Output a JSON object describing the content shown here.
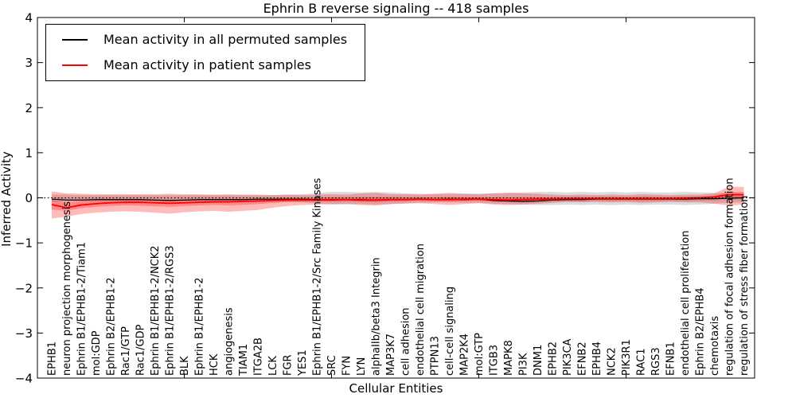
{
  "chart_data": {
    "type": "line",
    "title": "Ephrin B reverse signaling -- 418 samples",
    "xlabel": "Cellular Entities",
    "ylabel": "Inferred Activity",
    "ylim": [
      -4,
      4
    ],
    "yticks": [
      4,
      3,
      2,
      1,
      0,
      -1,
      -2,
      -3,
      -4
    ],
    "ytick_labels": [
      "4",
      "3",
      "2",
      "1",
      "0",
      "−1",
      "−2",
      "−3",
      "−4"
    ],
    "grid": false,
    "legend_position": "upper left",
    "zero_line_style": "dotted",
    "top_tick_indices": [
      9,
      19,
      29,
      39
    ],
    "categories": [
      "EPHB1",
      "neuron projection morphogenesis",
      "Ephrin B1/EPHB1-2/Tiam1",
      "mol:GDP",
      "Ephrin B2/EPHB1-2",
      "Rac1/GTP",
      "Rac1/GDP",
      "Ephrin B1/EPHB1-2/NCK2",
      "Ephrin B1/EPHB1-2/RGS3",
      "BLK",
      "Ephrin B1/EPHB1-2",
      "HCK",
      "angiogenesis",
      "TIAM1",
      "ITGA2B",
      "LCK",
      "FGR",
      "YES1",
      "Ephrin B1/EPHB1-2/Src Family Kinases",
      "SRC",
      "FYN",
      "LYN",
      "alphaIIb/beta3 Integrin",
      "MAP3K7",
      "cell adhesion",
      "endothelial cell migration",
      "PTPN13",
      "cell-cell signaling",
      "MAP2K4",
      "mol:GTP",
      "ITGB3",
      "MAPK8",
      "PI3K",
      "DNM1",
      "EPHB2",
      "PIK3CA",
      "EFNB2",
      "EPHB4",
      "NCK2",
      "PIK3R1",
      "RAC1",
      "RGS3",
      "EFNB1",
      "endothelial cell proliferation",
      "Ephrin B2/EPHB4",
      "chemotaxis",
      "regulation of focal adhesion formation",
      "regulation of stress fiber formation"
    ],
    "series": [
      {
        "name": "Mean activity in all permuted samples",
        "color": "#000000",
        "band_color": "#888888",
        "band_alpha": 0.3,
        "values": [
          -0.03,
          -0.05,
          -0.05,
          -0.04,
          -0.04,
          -0.04,
          -0.04,
          -0.05,
          -0.06,
          -0.05,
          -0.04,
          -0.04,
          -0.04,
          -0.04,
          -0.03,
          -0.03,
          -0.03,
          -0.03,
          -0.04,
          -0.05,
          -0.04,
          -0.04,
          -0.05,
          -0.04,
          -0.04,
          -0.03,
          -0.04,
          -0.03,
          -0.04,
          -0.03,
          -0.06,
          -0.07,
          -0.08,
          -0.07,
          -0.05,
          -0.04,
          -0.04,
          -0.03,
          -0.03,
          -0.03,
          -0.03,
          -0.03,
          -0.03,
          -0.03,
          -0.02,
          -0.02,
          -0.01,
          0.0
        ],
        "band_upper": [
          0.07,
          0.07,
          0.06,
          0.06,
          0.06,
          0.06,
          0.06,
          0.06,
          0.06,
          0.06,
          0.06,
          0.06,
          0.06,
          0.06,
          0.06,
          0.06,
          0.07,
          0.08,
          0.1,
          0.13,
          0.13,
          0.12,
          0.13,
          0.12,
          0.1,
          0.09,
          0.08,
          0.08,
          0.09,
          0.09,
          0.1,
          0.11,
          0.12,
          0.13,
          0.13,
          0.12,
          0.13,
          0.12,
          0.13,
          0.12,
          0.13,
          0.12,
          0.12,
          0.13,
          0.12,
          0.11,
          0.09,
          0.08
        ],
        "band_lower": [
          -0.09,
          -0.09,
          -0.08,
          -0.08,
          -0.08,
          -0.08,
          -0.08,
          -0.08,
          -0.08,
          -0.08,
          -0.08,
          -0.08,
          -0.08,
          -0.08,
          -0.08,
          -0.08,
          -0.09,
          -0.1,
          -0.12,
          -0.15,
          -0.15,
          -0.14,
          -0.15,
          -0.14,
          -0.12,
          -0.11,
          -0.1,
          -0.1,
          -0.11,
          -0.11,
          -0.13,
          -0.14,
          -0.15,
          -0.16,
          -0.16,
          -0.15,
          -0.16,
          -0.15,
          -0.16,
          -0.15,
          -0.16,
          -0.15,
          -0.15,
          -0.16,
          -0.15,
          -0.13,
          -0.11,
          -0.1
        ]
      },
      {
        "name": "Mean activity in patient samples",
        "color": "#ff0000",
        "band_color": "#ff0000",
        "band_alpha": 0.27,
        "values": [
          -0.15,
          -0.22,
          -0.16,
          -0.13,
          -0.11,
          -0.1,
          -0.1,
          -0.11,
          -0.12,
          -0.11,
          -0.1,
          -0.09,
          -0.09,
          -0.08,
          -0.07,
          -0.06,
          -0.05,
          -0.05,
          -0.05,
          -0.04,
          -0.04,
          -0.05,
          -0.05,
          -0.04,
          -0.04,
          -0.03,
          -0.04,
          -0.04,
          -0.03,
          -0.03,
          -0.04,
          -0.05,
          -0.04,
          -0.03,
          -0.03,
          -0.02,
          -0.02,
          -0.02,
          -0.02,
          -0.02,
          -0.02,
          -0.02,
          -0.02,
          -0.01,
          0.0,
          0.02,
          0.07,
          0.07
        ],
        "band_upper": [
          0.14,
          0.1,
          0.09,
          0.08,
          0.08,
          0.08,
          0.08,
          0.08,
          0.09,
          0.08,
          0.08,
          0.07,
          0.08,
          0.07,
          0.07,
          0.06,
          0.07,
          0.06,
          0.07,
          0.08,
          0.07,
          0.1,
          0.11,
          0.08,
          0.08,
          0.07,
          0.09,
          0.11,
          0.09,
          0.08,
          0.1,
          0.11,
          0.1,
          0.09,
          0.07,
          0.06,
          0.07,
          0.06,
          0.07,
          0.06,
          0.08,
          0.07,
          0.06,
          0.07,
          0.07,
          0.1,
          0.25,
          0.24
        ],
        "band_lower": [
          -0.46,
          -0.42,
          -0.36,
          -0.33,
          -0.31,
          -0.3,
          -0.31,
          -0.33,
          -0.35,
          -0.32,
          -0.3,
          -0.29,
          -0.31,
          -0.29,
          -0.27,
          -0.22,
          -0.18,
          -0.16,
          -0.15,
          -0.14,
          -0.13,
          -0.16,
          -0.17,
          -0.14,
          -0.13,
          -0.12,
          -0.14,
          -0.16,
          -0.14,
          -0.12,
          -0.15,
          -0.16,
          -0.15,
          -0.13,
          -0.11,
          -0.09,
          -0.1,
          -0.09,
          -0.1,
          -0.09,
          -0.11,
          -0.1,
          -0.09,
          -0.1,
          -0.1,
          -0.13,
          -0.17,
          -0.15
        ]
      }
    ]
  }
}
